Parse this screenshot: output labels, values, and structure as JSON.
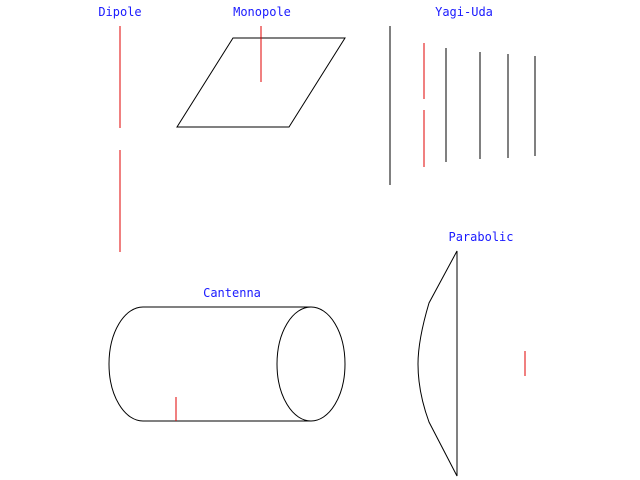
{
  "colors": {
    "background": "#ffffff",
    "outline": "#000000",
    "element": "#e00000",
    "label": "#1a1aff"
  },
  "labels": {
    "dipole": "Dipole",
    "monopole": "Monopole",
    "yagi_uda": "Yagi-Uda",
    "cantenna": "Cantenna",
    "parabolic": "Parabolic"
  }
}
